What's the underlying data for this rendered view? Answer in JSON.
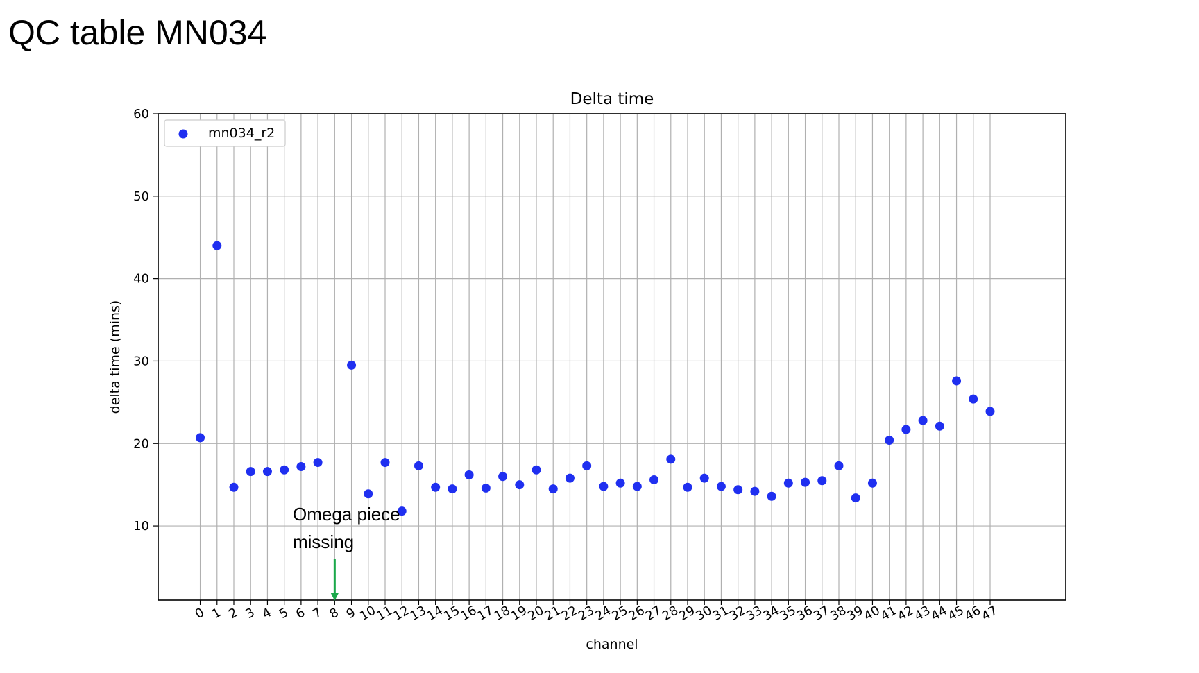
{
  "slide": {
    "title": "QC table MN034"
  },
  "chart_data": {
    "type": "scatter",
    "title": "Delta time",
    "xlabel": "channel",
    "ylabel": "delta time (mins)",
    "xlim": [
      -2.5,
      51.5
    ],
    "ylim": [
      1,
      60
    ],
    "grid": true,
    "legend_position": "top-left",
    "x_ticks": [
      0,
      1,
      2,
      3,
      4,
      5,
      6,
      7,
      8,
      9,
      10,
      11,
      12,
      13,
      14,
      15,
      16,
      17,
      18,
      19,
      20,
      21,
      22,
      23,
      24,
      25,
      26,
      27,
      28,
      29,
      30,
      31,
      32,
      33,
      34,
      35,
      36,
      37,
      38,
      39,
      40,
      41,
      42,
      43,
      44,
      45,
      46,
      47
    ],
    "y_ticks": [
      10,
      20,
      30,
      40,
      50,
      60
    ],
    "series": [
      {
        "name": "mn034_r2",
        "color": "#1f2ff0",
        "x": [
          0,
          1,
          2,
          3,
          4,
          5,
          6,
          7,
          9,
          10,
          11,
          12,
          13,
          14,
          15,
          16,
          17,
          18,
          19,
          20,
          21,
          22,
          23,
          24,
          25,
          26,
          27,
          28,
          29,
          30,
          31,
          32,
          33,
          34,
          35,
          36,
          37,
          38,
          39,
          40,
          41,
          42,
          43,
          44,
          45,
          46,
          47
        ],
        "y": [
          20.7,
          44.0,
          14.7,
          16.6,
          16.6,
          16.8,
          17.2,
          17.7,
          29.5,
          13.9,
          17.7,
          11.8,
          17.3,
          14.7,
          14.5,
          16.2,
          14.6,
          16.0,
          15.0,
          16.8,
          14.5,
          15.8,
          17.3,
          14.8,
          15.2,
          14.8,
          15.6,
          18.1,
          14.7,
          15.8,
          14.8,
          14.4,
          14.2,
          13.6,
          15.2,
          15.3,
          15.5,
          17.3,
          13.4,
          15.2,
          20.4,
          21.7,
          22.8,
          22.1,
          27.6,
          25.4,
          23.9
        ]
      }
    ],
    "annotation": {
      "text_line1": "Omega piece",
      "text_line2": "missing",
      "x": 8,
      "arrow_color": "#1aa84a"
    }
  }
}
